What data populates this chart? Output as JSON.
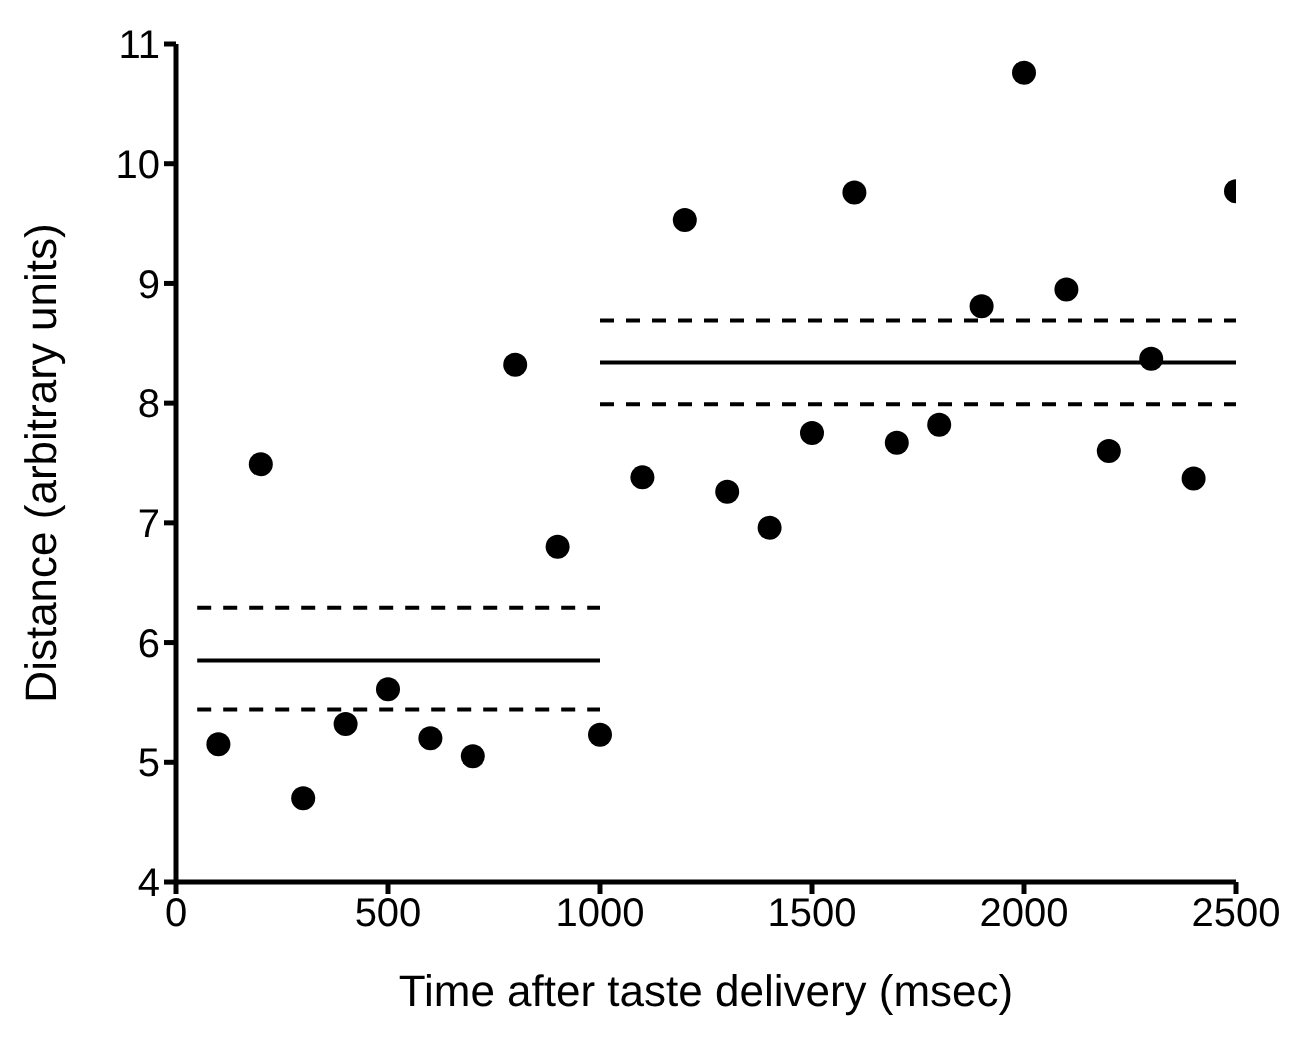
{
  "chart_data": {
    "type": "scatter",
    "xlabel": "Time after taste delivery (msec)",
    "ylabel": "Distance (arbitrary units)",
    "xlim": [
      0,
      2500
    ],
    "xticks": [
      0,
      500,
      1000,
      1500,
      2000,
      2500
    ],
    "ylim": [
      4,
      11
    ],
    "yticks": [
      4,
      5,
      6,
      7,
      8,
      9,
      10,
      11
    ],
    "grid": false,
    "marker": "circle",
    "series": [
      {
        "color": "#000000",
        "x": [
          100,
          200,
          300,
          400,
          500,
          600,
          700,
          800,
          900,
          1000,
          1100,
          1200,
          1300,
          1400,
          1500,
          1600,
          1700,
          1800,
          1900,
          2000,
          2100,
          2200,
          2300,
          2400,
          2500
        ],
        "values": [
          5.15,
          7.49,
          4.7,
          5.32,
          5.61,
          5.2,
          5.05,
          8.32,
          6.8,
          5.23,
          7.38,
          9.53,
          7.26,
          6.96,
          7.75,
          9.76,
          7.67,
          7.82,
          8.81,
          10.76,
          8.95,
          7.6,
          8.37,
          7.37,
          9.77
        ]
      },
      {
        "type": "line",
        "color": "#000000",
        "line_style": "solid",
        "marker": "none",
        "x": [
          50,
          1000
        ],
        "values": [
          5.85,
          5.85
        ]
      },
      {
        "type": "line",
        "color": "#000000",
        "line_style": "dashed",
        "marker": "none",
        "x": [
          50,
          1000
        ],
        "values": [
          6.29,
          6.29
        ]
      },
      {
        "type": "line",
        "color": "#000000",
        "line_style": "dashed",
        "marker": "none",
        "x": [
          50,
          1000
        ],
        "values": [
          5.44,
          5.44
        ]
      },
      {
        "type": "line",
        "color": "#000000",
        "line_style": "solid",
        "marker": "none",
        "x": [
          1000,
          2500
        ],
        "values": [
          8.34,
          8.34
        ]
      },
      {
        "type": "line",
        "color": "#000000",
        "line_style": "dashed",
        "marker": "none",
        "x": [
          1000,
          2500
        ],
        "values": [
          8.69,
          8.69
        ]
      },
      {
        "type": "line",
        "color": "#000000",
        "line_style": "dashed",
        "marker": "none",
        "x": [
          1000,
          2500
        ],
        "values": [
          7.99,
          7.99
        ]
      }
    ]
  }
}
